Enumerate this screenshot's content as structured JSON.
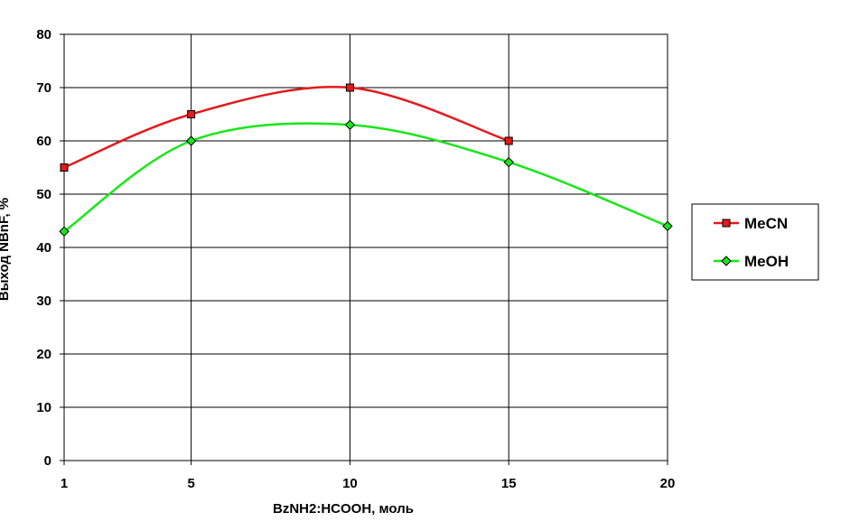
{
  "chart_data": {
    "type": "line",
    "title": "",
    "xlabel": "BzNH2:HCOOH, моль",
    "ylabel": "Выход NBnF, %",
    "x": [
      1,
      5,
      10,
      15,
      20
    ],
    "xlim": [
      1,
      20
    ],
    "ylim": [
      0,
      80
    ],
    "yticks": [
      0,
      10,
      20,
      30,
      40,
      50,
      60,
      70,
      80
    ],
    "grid": true,
    "smooth": true,
    "legend_position": "right",
    "series": [
      {
        "name": "MeCN",
        "color": "#e31a1c",
        "marker": "square",
        "points": [
          [
            1,
            55
          ],
          [
            5,
            65
          ],
          [
            10,
            70
          ],
          [
            15,
            60
          ]
        ]
      },
      {
        "name": "MeOH",
        "color": "#19e619",
        "marker": "diamond",
        "points": [
          [
            1,
            43
          ],
          [
            5,
            60
          ],
          [
            10,
            63
          ],
          [
            15,
            56
          ],
          [
            20,
            44
          ]
        ]
      }
    ]
  }
}
